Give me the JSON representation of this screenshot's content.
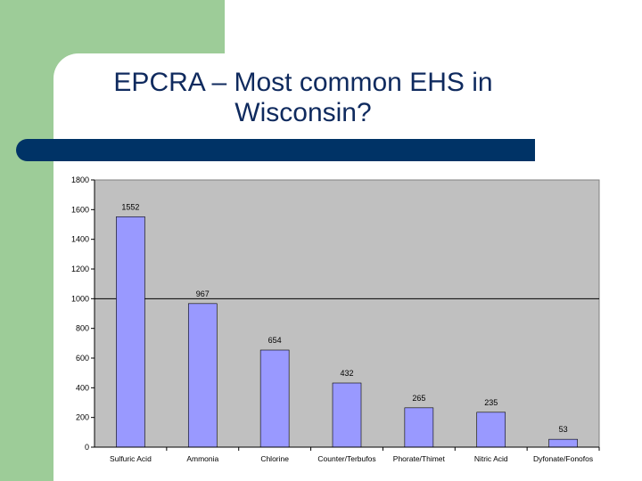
{
  "slide": {
    "title_line1": "EPCRA – Most common EHS in",
    "title_line2": "Wisconsin?"
  },
  "colors": {
    "accent_green": "#9dcc98",
    "title_bar": "#003366",
    "title_text": "#0f2a5e",
    "plot_background": "#c0c0c0",
    "bar_fill": "#9999ff"
  },
  "chart_data": {
    "type": "bar",
    "title": "",
    "xlabel": "",
    "ylabel": "",
    "categories": [
      "Sulfuric Acid",
      "Ammonia",
      "Chlorine",
      "Counter/Terbufos",
      "Phorate/Thimet",
      "Nitric Acid",
      "Dyfonate/Fonofos"
    ],
    "values": [
      1552,
      967,
      654,
      432,
      265,
      235,
      53
    ],
    "value_labels": [
      "1552",
      "967",
      "654",
      "432",
      "265",
      "235",
      "53"
    ],
    "ylim": [
      0,
      1800
    ],
    "yticks": [
      0,
      200,
      400,
      600,
      800,
      1000,
      1200,
      1400,
      1600,
      1800
    ],
    "ytick_labels": [
      "0",
      "200",
      "400",
      "600",
      "800",
      "1000",
      "1200",
      "1400",
      "1600",
      "1800"
    ],
    "grid": "major y gridline at 1000",
    "legend": "none"
  }
}
